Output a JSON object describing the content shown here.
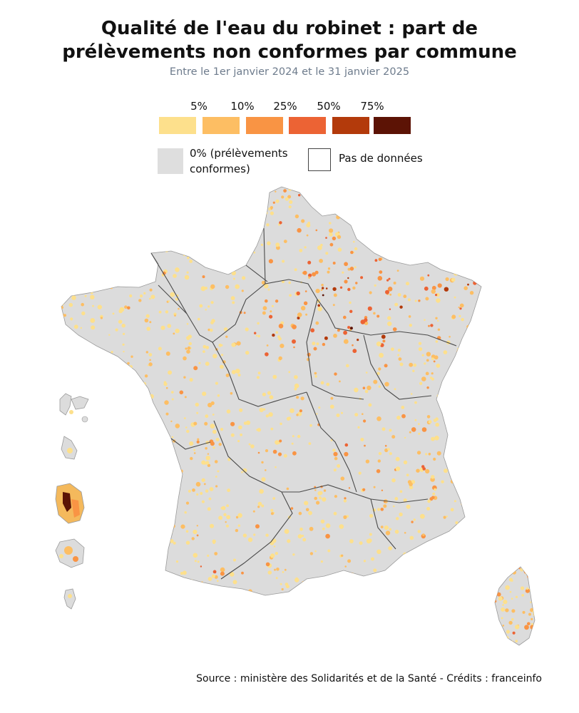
{
  "title_line1": "Qualité de l'eau du robinet : part de",
  "title_line2": "prélèvements non conformes par commune",
  "subtitle": "Entre le 1er janvier 2024 et le 31 janvier 2025",
  "legend": {
    "ticks": [
      "5%",
      "10%",
      "25%",
      "50%",
      "75%"
    ],
    "colors": [
      "#fde08c",
      "#fdbe63",
      "#f99444",
      "#ec6334",
      "#b33a0b",
      "#5c1305"
    ],
    "conforming_label_line1": "0% (prélèvements",
    "conforming_label_line2": "conformes)",
    "conforming_color": "#dedede",
    "no_data_label": "Pas de données"
  },
  "source": "Source : ministère des Solidarités et de la Santé - Crédits : franceinfo"
}
